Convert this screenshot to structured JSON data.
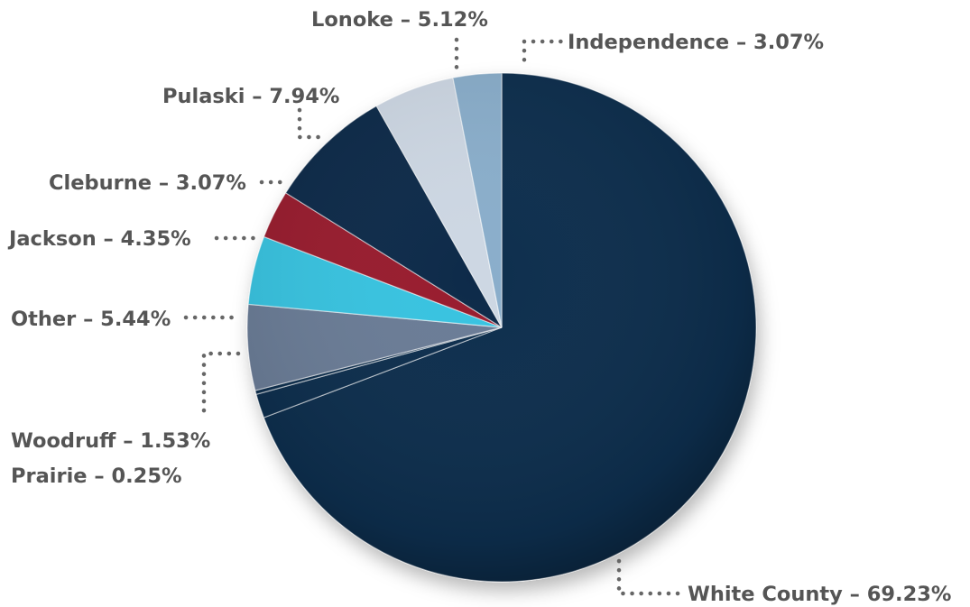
{
  "chart_data": {
    "type": "pie",
    "title": "",
    "slices": [
      {
        "label": "White County",
        "value": 69.23,
        "color": "#0e2e4d"
      },
      {
        "label": "Woodruff",
        "value": 1.53,
        "color": "#0e2e4d"
      },
      {
        "label": "Prairie",
        "value": 0.25,
        "color": "#0e2e4d"
      },
      {
        "label": "Other",
        "value": 5.44,
        "color": "#6b7b96"
      },
      {
        "label": "Jackson",
        "value": 4.35,
        "color": "#38c3e0"
      },
      {
        "label": "Cleburne",
        "value": 3.07,
        "color": "#981a2e"
      },
      {
        "label": "Pulaski",
        "value": 7.94,
        "color": "#0c2a48"
      },
      {
        "label": "Lonoke",
        "value": 5.12,
        "color": "#cdd7e3"
      },
      {
        "label": "Independence",
        "value": 3.07,
        "color": "#8aaecb"
      }
    ],
    "labels": {
      "white_county": "White County – 69.23%",
      "woodruff": "Woodruff – 1.53%",
      "prairie": "Prairie – 0.25%",
      "other": "Other – 5.44%",
      "jackson": "Jackson – 4.35%",
      "cleburne": "Cleburne – 3.07%",
      "pulaski": "Pulaski – 7.94%",
      "lonoke": "Lonoke – 5.12%",
      "independence": "Independence – 3.07%"
    }
  }
}
